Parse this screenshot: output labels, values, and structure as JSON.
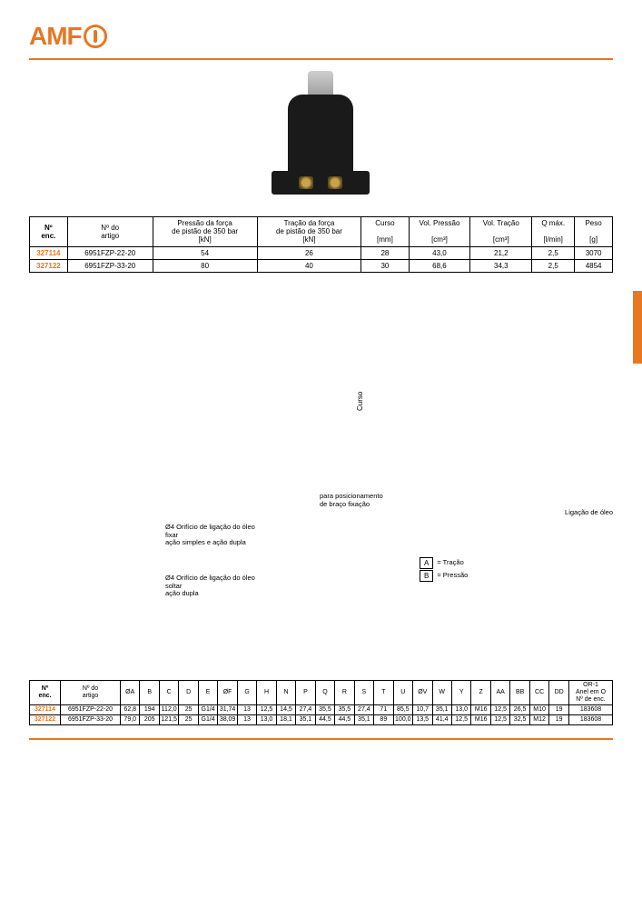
{
  "brand": "AMF",
  "hrColor": "#e87722",
  "table1": {
    "headers": {
      "nEnc": "Nº\nenc.",
      "artigo": "Nº do\nartigo",
      "pressao": "Pressão da força\nde pistão de 350 bar\n[kN]",
      "tracao": "Tração da força\nde pistão de 350 bar\n[kN]",
      "curso": "Curso\n\n[mm]",
      "volPressao": "Vol. Pressão\n\n[cm³]",
      "volTracao": "Vol. Tração\n\n[cm³]",
      "qmax": "Q máx.\n\n[l/min]",
      "peso": "Peso\n\n[g]"
    },
    "rows": [
      {
        "n": "327114",
        "art": "6951FZP-22-20",
        "pf": "54",
        "tf": "26",
        "curso": "28",
        "vp": "43,0",
        "vt": "21,2",
        "q": "2,5",
        "peso": "3070"
      },
      {
        "n": "327122",
        "art": "6951FZP-33-20",
        "pf": "80",
        "tf": "40",
        "curso": "30",
        "vp": "68,6",
        "vt": "34,3",
        "q": "2,5",
        "peso": "4854"
      }
    ]
  },
  "drawing": {
    "cursoLabel": "Curso",
    "posicion": "para posicionamento\nde braço fixação",
    "ligacao": "Ligação de óleo",
    "orif1": "Ø4 Orifício de ligação do óleo\nfixar\nação simples e ação dupla",
    "orif2": "Ø4 Orifício de ligação do óleo\nsoltar\nação dupla",
    "legA_key": "A",
    "legA_val": "= Tração",
    "legB_key": "B",
    "legB_val": "= Pressão"
  },
  "table2": {
    "headers": [
      "Nº\nenc.",
      "Nº do\nartigo",
      "ØA",
      "B",
      "C",
      "D",
      "E",
      "ØF",
      "G",
      "H",
      "N",
      "P",
      "Q",
      "R",
      "S",
      "T",
      "U",
      "ØV",
      "W",
      "Y",
      "Z",
      "AA",
      "BB",
      "CC",
      "DD",
      "OR-1\nAnel em O\nNº de enc."
    ],
    "rows": [
      [
        "327114",
        "6951FZP-22-20",
        "62,8",
        "194",
        "112,0",
        "25",
        "G1/4",
        "31,74",
        "13",
        "12,5",
        "14,5",
        "27,4",
        "35,5",
        "35,5",
        "27,4",
        "71",
        "85,5",
        "10,7",
        "35,1",
        "13,0",
        "M16",
        "12,5",
        "26,5",
        "M10",
        "19",
        "183608"
      ],
      [
        "327122",
        "6951FZP-33-20",
        "79,0",
        "205",
        "121,5",
        "25",
        "G1/4",
        "38,09",
        "13",
        "13,0",
        "18,1",
        "35,1",
        "44,5",
        "44,5",
        "35,1",
        "89",
        "100,0",
        "13,5",
        "41,4",
        "12,5",
        "M16",
        "12,5",
        "32,5",
        "M12",
        "19",
        "183608"
      ]
    ]
  }
}
